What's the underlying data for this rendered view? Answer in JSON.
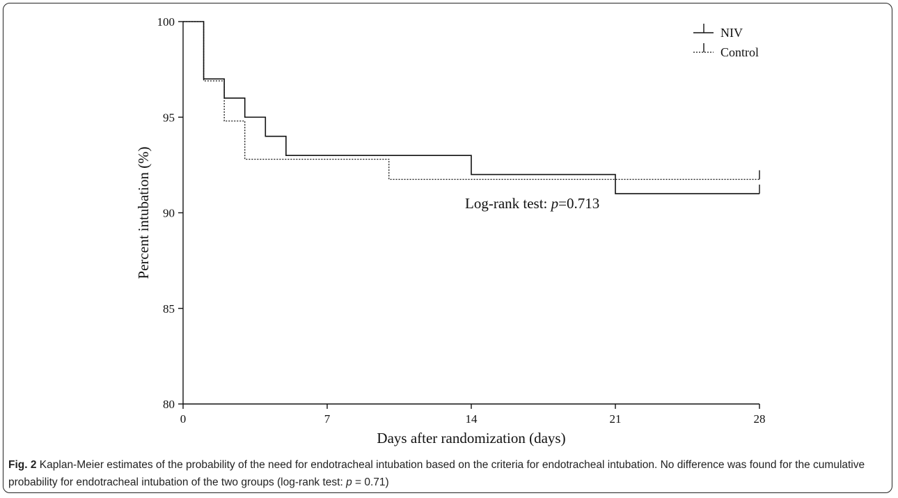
{
  "caption": {
    "label": "Fig. 2",
    "text": "Kaplan-Meier estimates of the probability of the need for endotracheal intubation based on the criteria for endotracheal intubation. No difference was found for the cumulative probability for endotracheal intubation of the two groups (log-rank test: ",
    "p_symbol": "p",
    "p_value": " = 0.71)"
  },
  "chart_data": {
    "type": "line",
    "step": true,
    "title": "",
    "xlabel": "Days after randomization (days)",
    "ylabel": "Percent intubation (%)",
    "xlim": [
      0,
      28
    ],
    "ylim": [
      80,
      100
    ],
    "xticks": [
      0,
      7,
      14,
      21,
      28
    ],
    "yticks": [
      80,
      85,
      90,
      95,
      100
    ],
    "legend_position": "top-right",
    "annotation": {
      "prefix": "Log-rank test: ",
      "p_symbol": "p",
      "suffix": "=0.713",
      "x": 14,
      "y": 90.5
    },
    "series": [
      {
        "name": "NIV",
        "style": "solid",
        "color": "#111111",
        "steps": [
          {
            "x": 0,
            "y": 100
          },
          {
            "x": 1,
            "y": 97
          },
          {
            "x": 2,
            "y": 96
          },
          {
            "x": 3,
            "y": 95
          },
          {
            "x": 4,
            "y": 94
          },
          {
            "x": 5,
            "y": 93
          },
          {
            "x": 14,
            "y": 92
          },
          {
            "x": 21,
            "y": 91
          }
        ],
        "end_x": 28
      },
      {
        "name": "Control",
        "style": "dotted",
        "color": "#111111",
        "steps": [
          {
            "x": 0,
            "y": 100
          },
          {
            "x": 1,
            "y": 96.9
          },
          {
            "x": 2,
            "y": 94.8
          },
          {
            "x": 3,
            "y": 92.8
          },
          {
            "x": 10,
            "y": 91.75
          }
        ],
        "end_x": 28
      }
    ]
  }
}
